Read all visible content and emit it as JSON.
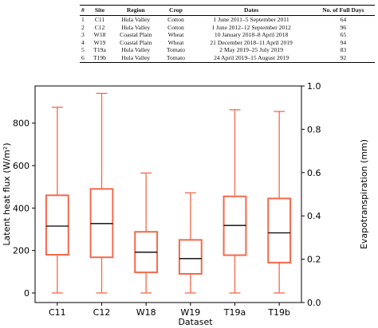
{
  "table": {
    "headers": [
      "#",
      "Site",
      "Region",
      "Crop",
      "Dates",
      "No. of Full Days"
    ],
    "rows": [
      [
        "1",
        "C11",
        "Hula Valley",
        "Cotton",
        "1 June 2011–5 September 2011",
        "64"
      ],
      [
        "2",
        "C12",
        "Hula Valley",
        "Cotton",
        "1 June 2012–12 September 2012",
        "96"
      ],
      [
        "3",
        "W18",
        "Coastal Plain",
        "Wheat",
        "10 January 2018–8 April 2018",
        "65"
      ],
      [
        "4",
        "W19",
        "Coastal Plain",
        "Wheat",
        "21 December 2018–11 April 2019",
        "94"
      ],
      [
        "5",
        "T19a",
        "Hula Valley",
        "Tomato",
        "2 May 2019–25 July 2019",
        "83"
      ],
      [
        "6",
        "T19b",
        "Hula Valley",
        "Tomato",
        "24 April 2019–15 August 2019",
        "92"
      ]
    ]
  },
  "chart_data": {
    "type": "box",
    "title": "",
    "xlabel": "Dataset",
    "ylabel": "Latent heat flux (W/m²)",
    "y2label": "Evapotranspiration (mm)",
    "categories": [
      "C11",
      "C12",
      "W18",
      "W19",
      "T19a",
      "T19b"
    ],
    "boxes": [
      {
        "min": 0,
        "q1": 180,
        "median": 315,
        "q3": 460,
        "max": 875
      },
      {
        "min": 0,
        "q1": 168,
        "median": 327,
        "q3": 490,
        "max": 940
      },
      {
        "min": 0,
        "q1": 97,
        "median": 192,
        "q3": 288,
        "max": 565
      },
      {
        "min": 0,
        "q1": 90,
        "median": 162,
        "q3": 250,
        "max": 472
      },
      {
        "min": 0,
        "q1": 178,
        "median": 318,
        "q3": 455,
        "max": 863
      },
      {
        "min": 0,
        "q1": 143,
        "median": 283,
        "q3": 445,
        "max": 855
      }
    ],
    "ylim": [
      -45,
      975
    ],
    "yticks": [
      "0",
      "200",
      "400",
      "600",
      "800"
    ],
    "y2lim": [
      0,
      1.0
    ],
    "y2ticks": [
      "0.0",
      "0.2",
      "0.4",
      "0.6",
      "0.8",
      "1.0"
    ],
    "colors": {
      "box": "#f4694b",
      "median": "#000000"
    },
    "grid": false
  }
}
